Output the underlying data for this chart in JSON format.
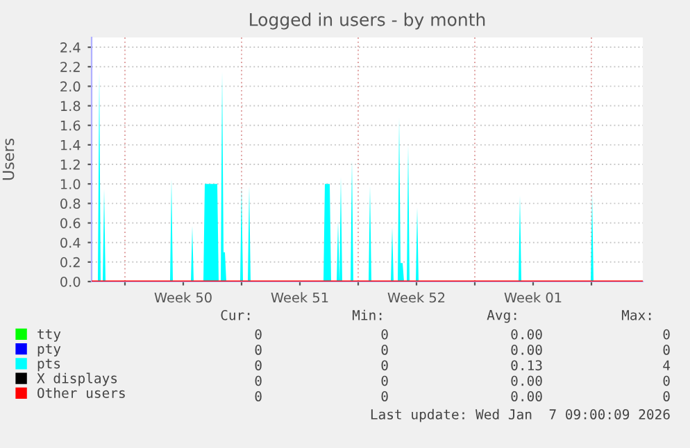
{
  "chart_data": {
    "type": "area",
    "title": "Logged in users - by month",
    "ylabel": "Users",
    "xlim": [
      "2025-12-06T00:00",
      "2026-01-08T02:00"
    ],
    "xticks": [
      {
        "value": "2025-12-08",
        "label": null
      },
      {
        "value": "2025-12-11T12:00",
        "label": "Week 50"
      },
      {
        "value": "2025-12-15",
        "label": null
      },
      {
        "value": "2025-12-18T12:00",
        "label": "Week 51"
      },
      {
        "value": "2025-12-22",
        "label": null
      },
      {
        "value": "2025-12-25T12:00",
        "label": "Week 52"
      },
      {
        "value": "2025-12-29",
        "label": null
      },
      {
        "value": "2026-01-01T12:00",
        "label": "Week 01"
      },
      {
        "value": "2026-01-05",
        "label": null
      }
    ],
    "ylim": [
      0,
      2.5
    ],
    "yticks": [
      {
        "value": 0,
        "label": "0.0"
      },
      {
        "value": 0.2,
        "label": "0.2"
      },
      {
        "value": 0.4,
        "label": "0.4"
      },
      {
        "value": 0.6,
        "label": "0.6"
      },
      {
        "value": 0.8,
        "label": "0.8"
      },
      {
        "value": 1.0,
        "label": "1.0"
      },
      {
        "value": 1.2,
        "label": "1.2"
      },
      {
        "value": 1.4,
        "label": "1.4"
      },
      {
        "value": 1.6,
        "label": "1.6"
      },
      {
        "value": 1.8,
        "label": "1.8"
      },
      {
        "value": 2.0,
        "label": "2.0"
      },
      {
        "value": 2.2,
        "label": "2.2"
      },
      {
        "value": 2.4,
        "label": "2.4"
      }
    ],
    "grid": true,
    "legend": "bottom left",
    "series": [
      {
        "name": "tty",
        "color": "#00ff00"
      },
      {
        "name": "pty",
        "color": "#0000ff"
      },
      {
        "name": "pts",
        "color": "#00ffff",
        "x": [
          "2025-12-06T09:00",
          "2025-12-06T11:00",
          "2025-12-06T13:00",
          "2025-12-06T16:00",
          "2025-12-06T18:00",
          "2025-12-06T20:00",
          "2025-12-10T17:00",
          "2025-12-10T19:00",
          "2025-12-10T21:00",
          "2025-12-11T23:00",
          "2025-12-12T01:00",
          "2025-12-12T03:00",
          "2025-12-12T17:00",
          "2025-12-12T19:00",
          "2025-12-13T13:00",
          "2025-12-13T15:00",
          "2025-12-13T18:00",
          "2025-12-13T20:00",
          "2025-12-13T22:00",
          "2025-12-14T00:00",
          "2025-12-14T02:00",
          "2025-12-14T22:00",
          "2025-12-15T00:00",
          "2025-12-15T02:00",
          "2025-12-15T09:00",
          "2025-12-15T11:00",
          "2025-12-15T13:00",
          "2025-12-19T22:00",
          "2025-12-20T00:00",
          "2025-12-20T07:00",
          "2025-12-20T09:00",
          "2025-12-20T17:00",
          "2025-12-20T19:00",
          "2025-12-20T21:00",
          "2025-12-20T23:00",
          "2025-12-21T01:00",
          "2025-12-21T13:00",
          "2025-12-21T15:00",
          "2025-12-21T17:00",
          "2025-12-22T15:00",
          "2025-12-22T17:00",
          "2025-12-22T19:00",
          "2025-12-23T23:00",
          "2025-12-24T01:00",
          "2025-12-24T03:00",
          "2025-12-24T09:00",
          "2025-12-24T11:00",
          "2025-12-24T13:00",
          "2025-12-24T16:00",
          "2025-12-24T18:00",
          "2025-12-24T22:00",
          "2025-12-25T00:00",
          "2025-12-25T02:00",
          "2025-12-25T11:00",
          "2025-12-25T13:00",
          "2025-12-25T15:00",
          "2025-12-31T15:00",
          "2025-12-31T17:00",
          "2025-12-31T19:00",
          "2026-01-04T23:00",
          "2026-01-05T01:00",
          "2026-01-05T03:00"
        ],
        "values": [
          0,
          2.15,
          0,
          0,
          0.95,
          0,
          0,
          1.05,
          0,
          0,
          0.57,
          0,
          0,
          1.0,
          1.0,
          0,
          0,
          2.15,
          0.3,
          0.3,
          0,
          0,
          0.98,
          0,
          0,
          0.98,
          0,
          0,
          1.0,
          1.0,
          0,
          0,
          0.62,
          0,
          1.07,
          0,
          0,
          1.24,
          0,
          0,
          0.98,
          0,
          0,
          0.56,
          0,
          0,
          1.68,
          0.19,
          0.19,
          0,
          0,
          1.4,
          0,
          0,
          0.76,
          0,
          0,
          0.88,
          0,
          0,
          0.9,
          0
        ]
      },
      {
        "name": "X displays",
        "color": "#000000"
      },
      {
        "name": "Other users",
        "color": "#ff0000",
        "type": "line",
        "x": [
          "2025-12-06T00:00",
          "2026-01-08T02:00"
        ],
        "values": [
          0,
          0
        ]
      }
    ],
    "annotations": [
      "Cur:",
      "Min:",
      "Avg:",
      "Max:",
      "0",
      "0",
      "0.00",
      "0",
      "0",
      "0",
      "0.00",
      "0",
      "0",
      "0",
      "0.13",
      "4",
      "0",
      "0",
      "0.00",
      "0",
      "0",
      "0",
      "0.00",
      "0",
      "Last update: Wed Jan  7 09:00:09 2026"
    ]
  }
}
